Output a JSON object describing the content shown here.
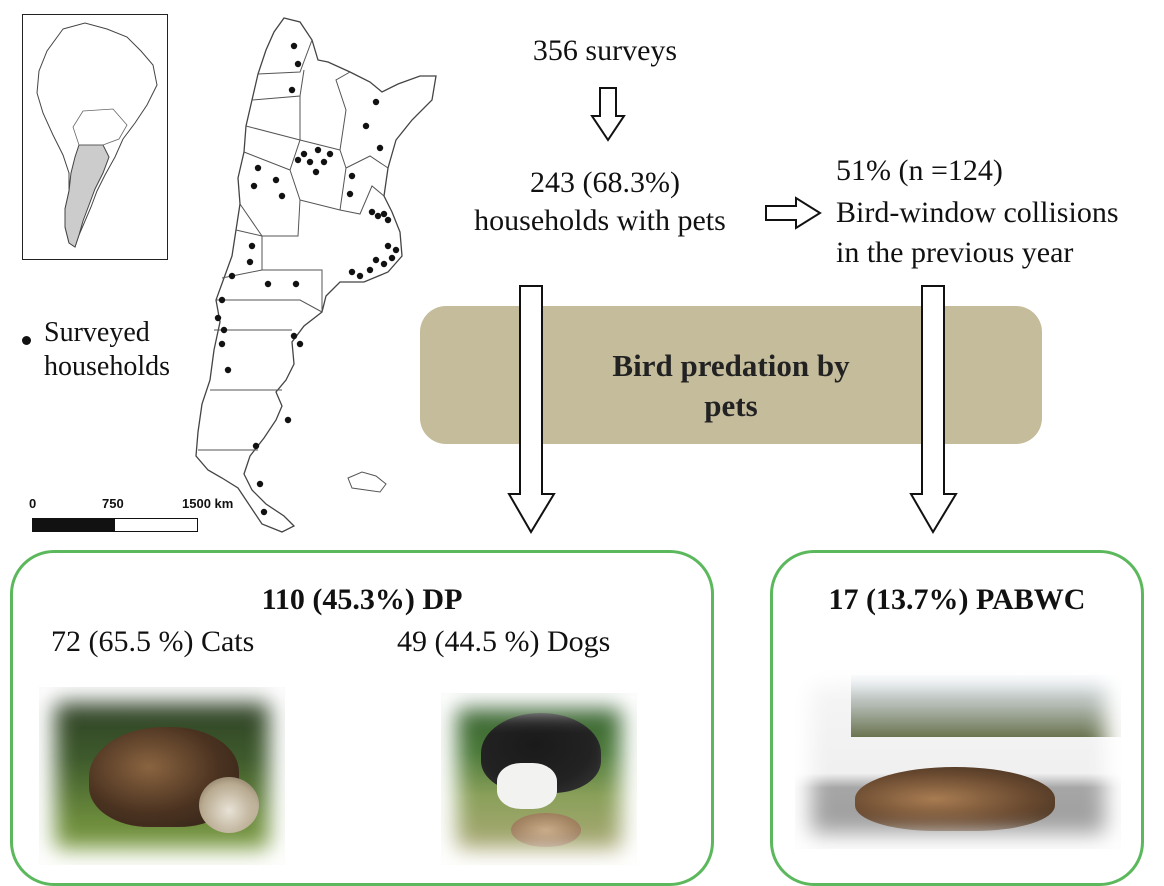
{
  "flow": {
    "surveys": "356 surveys",
    "pets_count": "243 (68.3%)",
    "pets_label": "households with pets",
    "collisions_count": "51% (n =124)",
    "collisions_line1": "Bird-window collisions",
    "collisions_line2": "in the previous year"
  },
  "banner": {
    "line1": "Bird predation by",
    "line2": "pets"
  },
  "legend": {
    "line1": "Surveyed",
    "line2": "households"
  },
  "scale": {
    "tick0": "0",
    "tick1": "750",
    "tick2": "1500 km"
  },
  "dp_box": {
    "title": "110 (45.3%) DP",
    "cats": "72 (65.5 %) Cats",
    "dogs": "49 (44.5 %) Dogs"
  },
  "pabwc_box": {
    "title": "17 (13.7%) PABWC"
  },
  "colors": {
    "banner": "#c5bc9c",
    "box_border": "#5cb85c",
    "inset_highlight": "#cccccc"
  },
  "icons": [
    "arrow-down-icon",
    "arrow-right-icon",
    "map-marker-icon"
  ]
}
